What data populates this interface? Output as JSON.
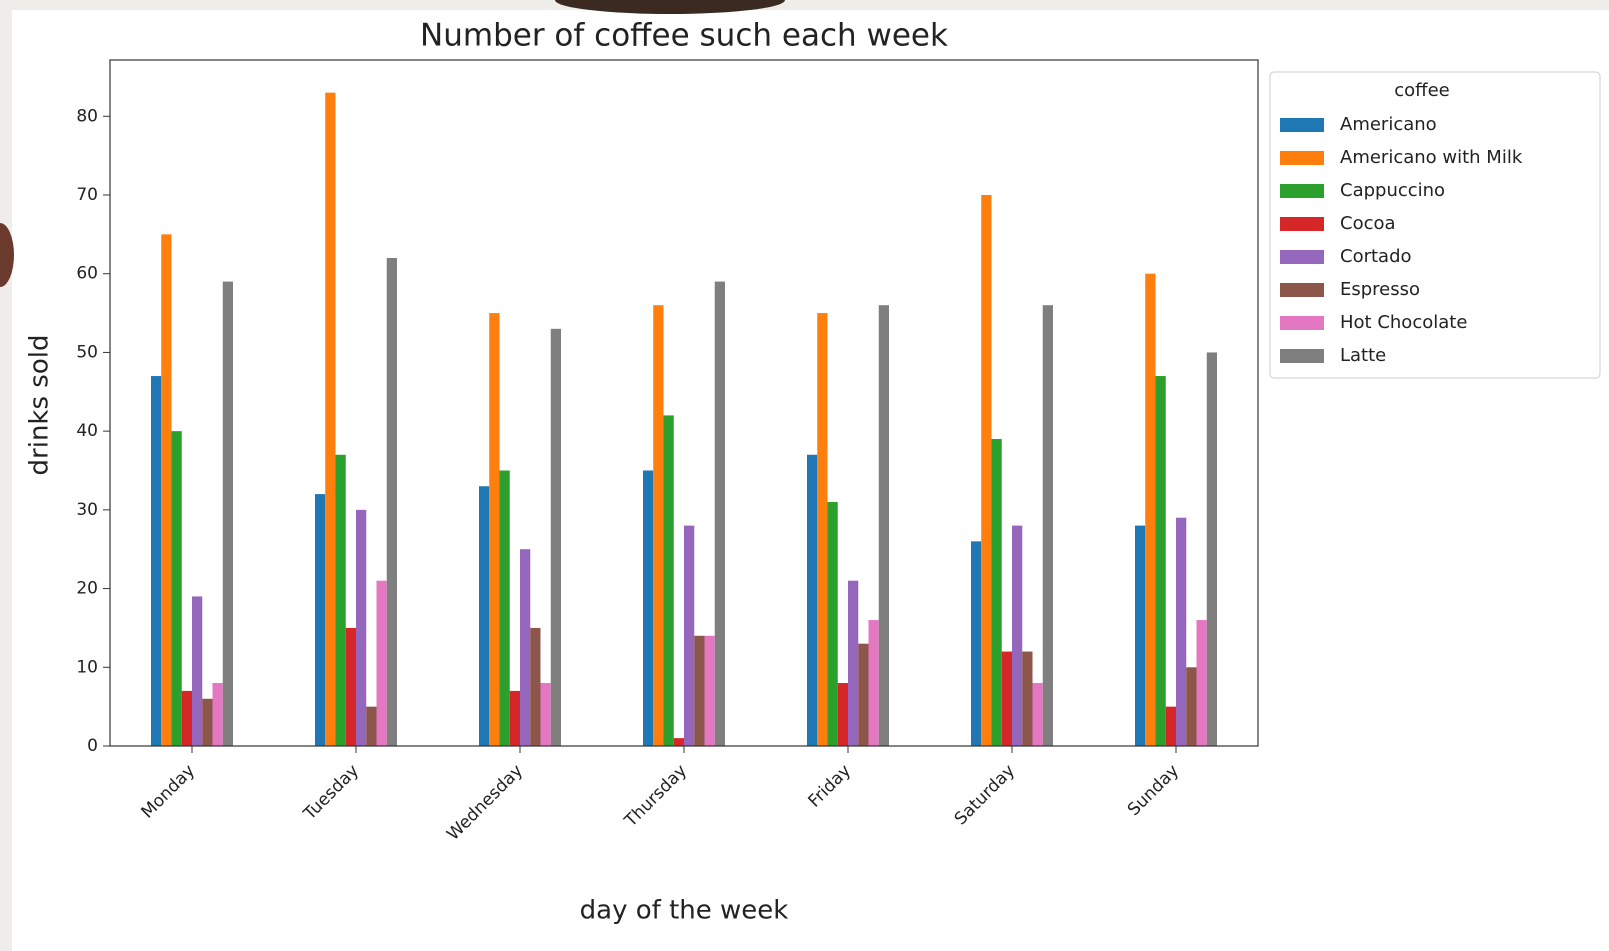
{
  "chart_data": {
    "type": "bar",
    "title": "Number of coffee such each week",
    "x_label": "day of the week",
    "y_label": "drinks sold",
    "legend_title": "coffee",
    "categories": [
      "Monday",
      "Tuesday",
      "Wednesday",
      "Thursday",
      "Friday",
      "Saturday",
      "Sunday"
    ],
    "series": [
      {
        "name": "Americano",
        "color": "#1f77b4",
        "values": [
          47,
          32,
          33,
          35,
          37,
          26,
          28
        ]
      },
      {
        "name": "Americano with Milk",
        "color": "#ff7f0e",
        "values": [
          65,
          83,
          55,
          56,
          55,
          70,
          60
        ]
      },
      {
        "name": "Cappuccino",
        "color": "#2ca02c",
        "values": [
          40,
          37,
          35,
          42,
          31,
          39,
          47
        ]
      },
      {
        "name": "Cocoa",
        "color": "#d62728",
        "values": [
          7,
          15,
          7,
          1,
          8,
          12,
          5
        ]
      },
      {
        "name": "Cortado",
        "color": "#9467bd",
        "values": [
          19,
          30,
          25,
          28,
          21,
          28,
          29
        ]
      },
      {
        "name": "Espresso",
        "color": "#8c564b",
        "values": [
          6,
          5,
          15,
          14,
          13,
          12,
          10
        ]
      },
      {
        "name": "Hot Chocolate",
        "color": "#e377c2",
        "values": [
          8,
          21,
          8,
          14,
          16,
          8,
          16
        ]
      },
      {
        "name": "Latte",
        "color": "#7f7f7f",
        "values": [
          59,
          62,
          53,
          59,
          56,
          56,
          50
        ]
      }
    ],
    "ylim": [
      0,
      87.15
    ],
    "yticks": [
      0,
      10,
      20,
      30,
      40,
      50,
      60,
      70,
      80
    ]
  }
}
